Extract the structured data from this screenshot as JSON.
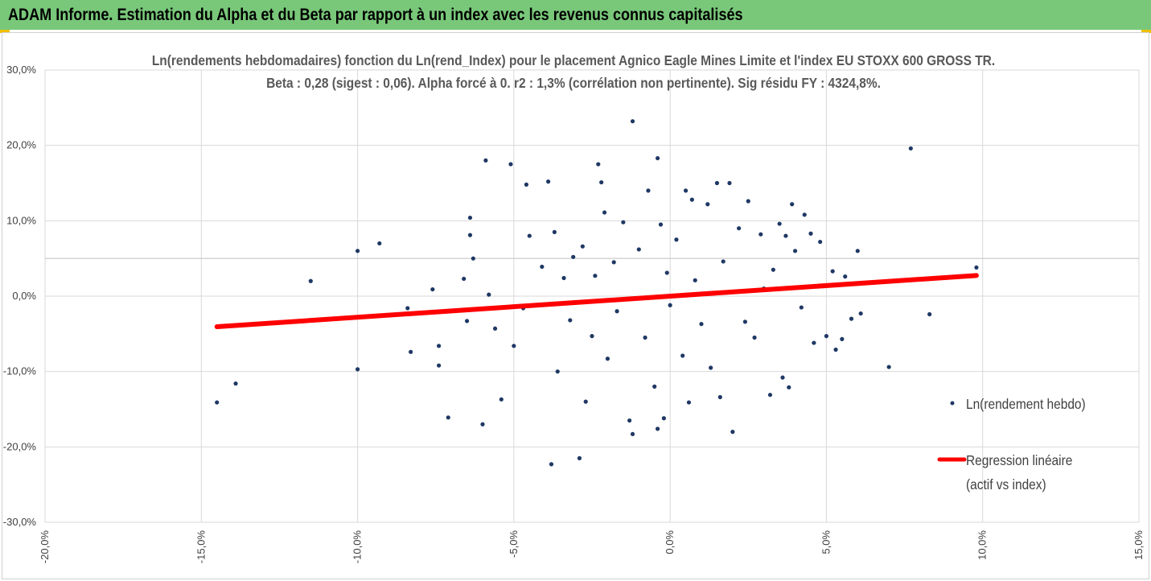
{
  "header": {
    "title": "ADAM Informe. Estimation du Alpha et du Beta par rapport à un index avec les revenus connus capitalisés"
  },
  "colors": {
    "banner": "#79c87a",
    "accent": "#f0c000",
    "points": "#1f3864",
    "regression": "#ff0000",
    "grid": "#d9d9d9"
  },
  "chart_data": {
    "type": "scatter",
    "title_line1": "Ln(rendements hebdomadaires) fonction du Ln(rend_Index)  pour le placement Agnico Eagle Mines Limite et l'index EU STOXX 600 GROSS TR.",
    "title_line2": "Beta : 0,28 (sigest : 0,06).  Alpha forcé à 0.  r2 : 1,3% (corrélation non pertinente). Sig résidu FY : 4324,8%.",
    "xlim": [
      -0.2,
      0.15
    ],
    "ylim": [
      -0.3,
      0.3
    ],
    "x_ticks": [
      "-20,0%",
      "-15,0%",
      "-10,0%",
      "-5,0%",
      "0,0%",
      "5,0%",
      "10,0%",
      "15,0%"
    ],
    "y_ticks": [
      "30,0%",
      "20,0%",
      "10,0%",
      "0,0%",
      "-10,0%",
      "-20,0%",
      "-30,0%"
    ],
    "grid": true,
    "legend_position": "right",
    "series": [
      {
        "name": "Ln(rendement hebdo)",
        "kind": "scatter",
        "points": [
          [
            -0.145,
            -0.141
          ],
          [
            -0.139,
            -0.116
          ],
          [
            -0.115,
            0.02
          ],
          [
            -0.1,
            0.06
          ],
          [
            -0.1,
            -0.097
          ],
          [
            -0.093,
            0.07
          ],
          [
            -0.084,
            -0.016
          ],
          [
            -0.083,
            -0.074
          ],
          [
            -0.076,
            0.009
          ],
          [
            -0.074,
            -0.066
          ],
          [
            -0.074,
            -0.092
          ],
          [
            -0.071,
            -0.161
          ],
          [
            -0.066,
            0.023
          ],
          [
            -0.065,
            -0.033
          ],
          [
            -0.064,
            0.104
          ],
          [
            -0.064,
            0.081
          ],
          [
            -0.063,
            0.05
          ],
          [
            -0.06,
            -0.17
          ],
          [
            -0.059,
            0.18
          ],
          [
            -0.058,
            0.002
          ],
          [
            -0.056,
            -0.043
          ],
          [
            -0.054,
            -0.137
          ],
          [
            -0.051,
            0.175
          ],
          [
            -0.05,
            -0.066
          ],
          [
            -0.047,
            -0.016
          ],
          [
            -0.046,
            0.148
          ],
          [
            -0.045,
            0.08
          ],
          [
            -0.041,
            0.039
          ],
          [
            -0.039,
            0.152
          ],
          [
            -0.038,
            -0.223
          ],
          [
            -0.037,
            0.085
          ],
          [
            -0.036,
            -0.1
          ],
          [
            -0.034,
            0.024
          ],
          [
            -0.032,
            -0.032
          ],
          [
            -0.031,
            0.052
          ],
          [
            -0.029,
            -0.215
          ],
          [
            -0.028,
            0.066
          ],
          [
            -0.027,
            -0.14
          ],
          [
            -0.025,
            -0.053
          ],
          [
            -0.024,
            0.027
          ],
          [
            -0.023,
            0.175
          ],
          [
            -0.022,
            0.151
          ],
          [
            -0.021,
            0.111
          ],
          [
            -0.02,
            -0.083
          ],
          [
            -0.018,
            0.045
          ],
          [
            -0.017,
            -0.02
          ],
          [
            -0.015,
            0.098
          ],
          [
            -0.013,
            -0.165
          ],
          [
            -0.012,
            0.232
          ],
          [
            -0.012,
            -0.183
          ],
          [
            -0.01,
            0.062
          ],
          [
            -0.008,
            -0.055
          ],
          [
            -0.007,
            0.14
          ],
          [
            -0.005,
            -0.12
          ],
          [
            -0.004,
            0.183
          ],
          [
            -0.004,
            -0.176
          ],
          [
            -0.003,
            0.095
          ],
          [
            -0.002,
            -0.162
          ],
          [
            -0.001,
            0.031
          ],
          [
            0.0,
            -0.012
          ],
          [
            0.002,
            0.075
          ],
          [
            0.004,
            -0.079
          ],
          [
            0.005,
            0.14
          ],
          [
            0.006,
            -0.141
          ],
          [
            0.007,
            0.128
          ],
          [
            0.008,
            0.021
          ],
          [
            0.01,
            -0.037
          ],
          [
            0.012,
            0.122
          ],
          [
            0.013,
            -0.095
          ],
          [
            0.015,
            0.15
          ],
          [
            0.016,
            -0.134
          ],
          [
            0.017,
            0.046
          ],
          [
            0.019,
            0.15
          ],
          [
            0.02,
            -0.18
          ],
          [
            0.022,
            0.09
          ],
          [
            0.024,
            -0.034
          ],
          [
            0.025,
            0.126
          ],
          [
            0.027,
            -0.055
          ],
          [
            0.029,
            0.082
          ],
          [
            0.03,
            0.01
          ],
          [
            0.032,
            -0.131
          ],
          [
            0.033,
            0.035
          ],
          [
            0.035,
            0.096
          ],
          [
            0.036,
            -0.108
          ],
          [
            0.037,
            0.08
          ],
          [
            0.038,
            -0.121
          ],
          [
            0.039,
            0.122
          ],
          [
            0.04,
            0.06
          ],
          [
            0.042,
            -0.015
          ],
          [
            0.043,
            0.108
          ],
          [
            0.045,
            0.083
          ],
          [
            0.046,
            -0.062
          ],
          [
            0.048,
            0.072
          ],
          [
            0.05,
            -0.053
          ],
          [
            0.052,
            0.033
          ],
          [
            0.053,
            -0.071
          ],
          [
            0.055,
            -0.057
          ],
          [
            0.056,
            0.026
          ],
          [
            0.058,
            -0.03
          ],
          [
            0.06,
            0.06
          ],
          [
            0.061,
            -0.023
          ],
          [
            0.07,
            -0.094
          ],
          [
            0.077,
            0.196
          ],
          [
            0.083,
            -0.024
          ],
          [
            0.098,
            0.038
          ]
        ]
      },
      {
        "name": "Regression linéaire",
        "name_line2": "(actif vs index)",
        "kind": "line",
        "x": [
          -0.145,
          0.098
        ],
        "y": [
          -0.0406,
          0.0274
        ]
      }
    ]
  }
}
